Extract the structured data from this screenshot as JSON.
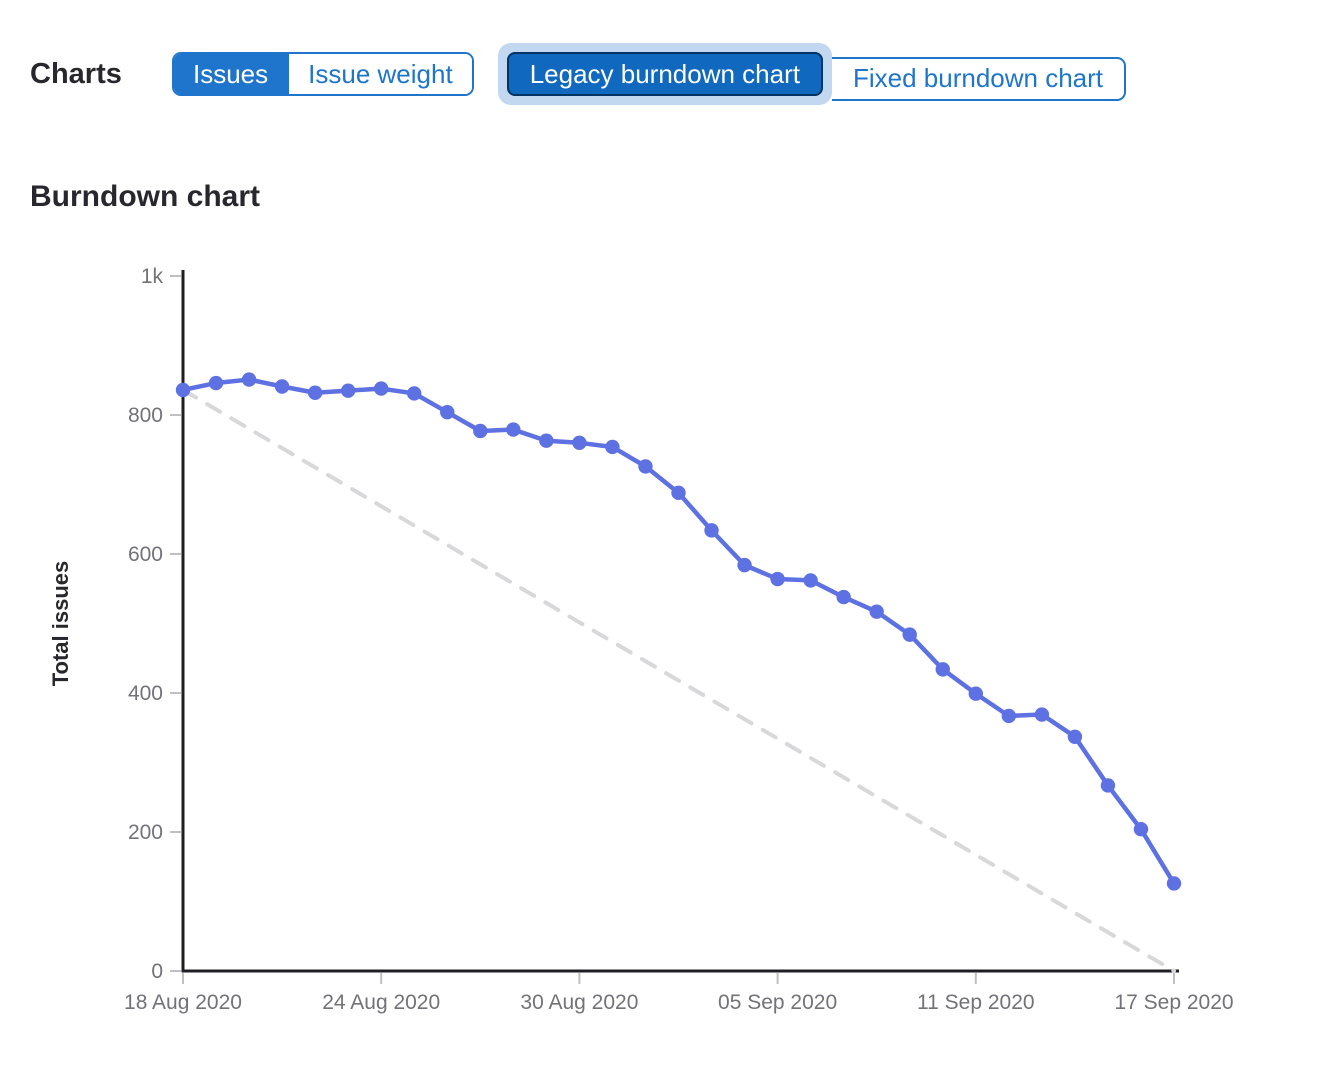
{
  "toolbar": {
    "label": "Charts",
    "type_toggle": {
      "options": [
        {
          "label": "Issues",
          "selected": true
        },
        {
          "label": "Issue weight",
          "selected": false
        }
      ]
    },
    "variant_toggle": {
      "options": [
        {
          "label": "Legacy burndown chart",
          "selected": true,
          "focused": true
        },
        {
          "label": "Fixed burndown chart",
          "selected": false
        }
      ]
    }
  },
  "section": {
    "title": "Burndown chart"
  },
  "colors": {
    "accent_blue": "#1f75cb",
    "selected_button_bg": "#1068bf",
    "selected_button_border": "#033464",
    "focus_ring": "#c2d7f0",
    "line_blue": "#5e71e2",
    "guideline_gray": "#d8d8db",
    "axis": "#1f1e24",
    "tick": "#bfbfc4",
    "tick_label": "#737278"
  },
  "chart_data": {
    "type": "line",
    "title": "Burndown chart",
    "xlabel": "",
    "ylabel": "Total issues",
    "ylim": [
      0,
      1000
    ],
    "grid": false,
    "legend": "none",
    "x": [
      "18 Aug 2020",
      "19 Aug 2020",
      "20 Aug 2020",
      "21 Aug 2020",
      "22 Aug 2020",
      "23 Aug 2020",
      "24 Aug 2020",
      "25 Aug 2020",
      "26 Aug 2020",
      "27 Aug 2020",
      "28 Aug 2020",
      "29 Aug 2020",
      "30 Aug 2020",
      "31 Aug 2020",
      "01 Sep 2020",
      "02 Sep 2020",
      "03 Sep 2020",
      "04 Sep 2020",
      "05 Sep 2020",
      "06 Sep 2020",
      "07 Sep 2020",
      "08 Sep 2020",
      "09 Sep 2020",
      "10 Sep 2020",
      "11 Sep 2020",
      "12 Sep 2020",
      "13 Sep 2020",
      "14 Sep 2020",
      "15 Sep 2020",
      "16 Sep 2020",
      "17 Sep 2020"
    ],
    "x_tick_indexes": [
      0,
      6,
      12,
      18,
      24,
      30
    ],
    "y_ticks": [
      {
        "value": 0,
        "label": "0"
      },
      {
        "value": 200,
        "label": "200"
      },
      {
        "value": 400,
        "label": "400"
      },
      {
        "value": 600,
        "label": "600"
      },
      {
        "value": 800,
        "label": "800"
      },
      {
        "value": 1000,
        "label": "1k"
      }
    ],
    "series": [
      {
        "name": "Open issues",
        "style": "solid",
        "color": "#5e71e2",
        "values": [
          836,
          846,
          851,
          841,
          832,
          835,
          838,
          831,
          804,
          777,
          779,
          763,
          760,
          754,
          726,
          688,
          634,
          584,
          564,
          562,
          538,
          517,
          484,
          434,
          399,
          367,
          369,
          337,
          267,
          204,
          126
        ]
      },
      {
        "name": "Guideline",
        "style": "dashed",
        "color": "#d8d8db",
        "endpoints": [
          836,
          0
        ]
      }
    ]
  }
}
